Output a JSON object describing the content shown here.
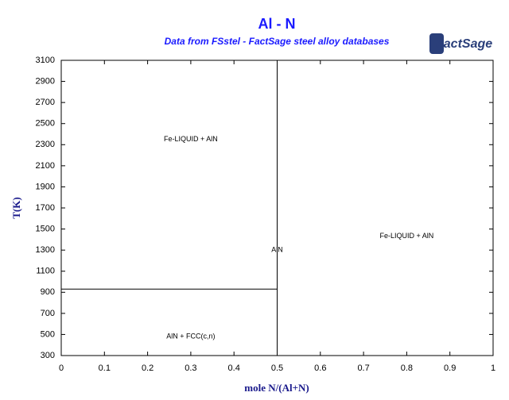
{
  "chart_data": {
    "type": "line",
    "title": "Al - N",
    "subtitle": "Data from FSstel - FactSage steel alloy databases",
    "logo": "FactSage",
    "x_label": "mole N/(Al+N)",
    "y_label": "T(K)",
    "xlim": [
      0,
      1
    ],
    "ylim": [
      300,
      3100
    ],
    "xticks": [
      0,
      0.1,
      0.2,
      0.3,
      0.4,
      0.5,
      0.6,
      0.7,
      0.8,
      0.9,
      1
    ],
    "yticks": [
      300,
      500,
      700,
      900,
      1100,
      1300,
      1500,
      1700,
      1900,
      2100,
      2300,
      2500,
      2700,
      2900,
      3100
    ],
    "series": [
      {
        "color": "#000000",
        "x": [
          0.5,
          0.5
        ],
        "values": [
          300,
          3100
        ]
      },
      {
        "color": "#000000",
        "x": [
          0,
          0.5
        ],
        "values": [
          930,
          930
        ]
      }
    ],
    "annotations": [
      {
        "text": "Fe-LIQUID + AlN",
        "x": 0.3,
        "y": 2350
      },
      {
        "text": "AlN",
        "x": 0.5,
        "y": 1300
      },
      {
        "text": "Fe-LIQUID + AlN",
        "x": 0.8,
        "y": 1430
      },
      {
        "text": "AlN + FCC(c,n)",
        "x": 0.3,
        "y": 480
      }
    ]
  }
}
